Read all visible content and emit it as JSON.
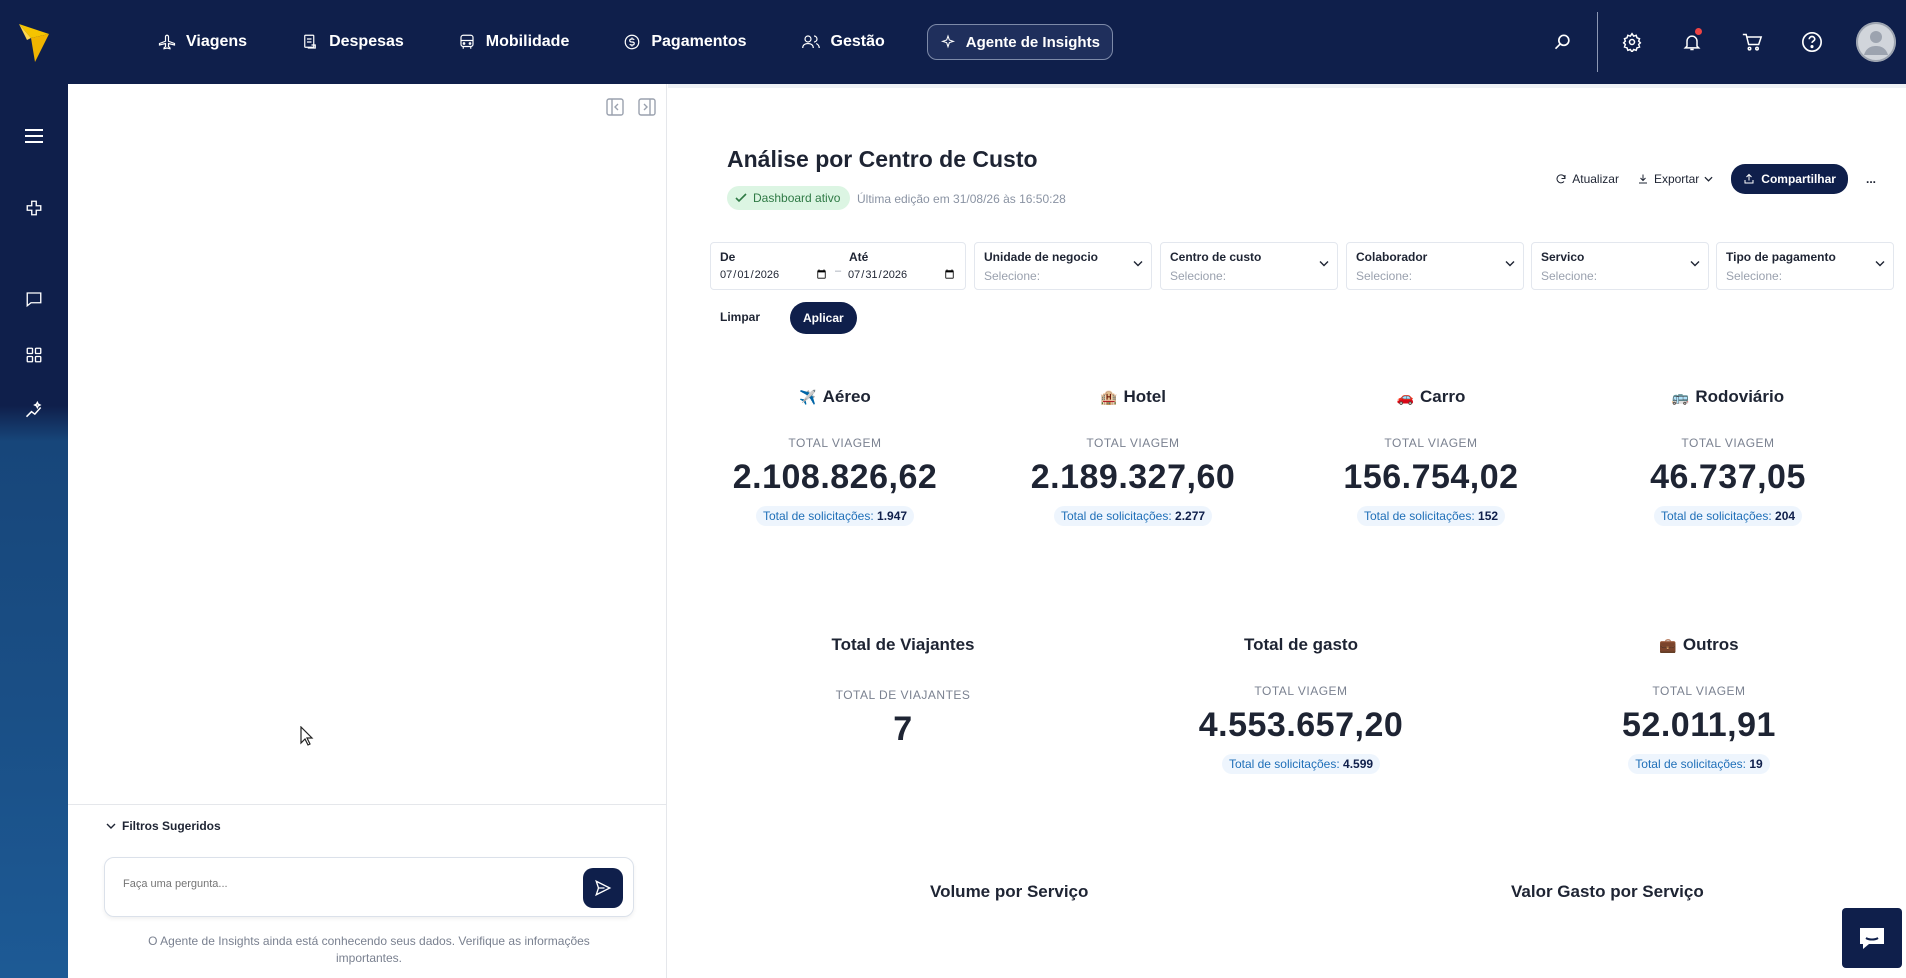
{
  "nav": {
    "items": [
      {
        "label": "Viagens",
        "icon": "plane-icon"
      },
      {
        "label": "Despesas",
        "icon": "receipt-icon"
      },
      {
        "label": "Mobilidade",
        "icon": "bus-icon"
      },
      {
        "label": "Pagamentos",
        "icon": "dollar-icon"
      },
      {
        "label": "Gestão",
        "icon": "users-icon"
      },
      {
        "label": "Agente de Insights",
        "icon": "sparkle-icon"
      }
    ]
  },
  "chat": {
    "suggested_filters": "Filtros Sugeridos",
    "input_placeholder": "Faça uma pergunta...",
    "disclaimer": "O Agente de Insights ainda está conhecendo seus dados. Verifique as informações importantes."
  },
  "dashboard": {
    "title": "Análise por Centro de Custo",
    "status_badge": "Dashboard ativo",
    "last_edit": "Última edição em 31/08/26 às 16:50:28",
    "actions": {
      "refresh": "Atualizar",
      "export": "Exportar",
      "share": "Compartilhar",
      "more": "..."
    }
  },
  "filters": {
    "from_label": "De",
    "from_value": "2026-07-01",
    "to_label": "Até",
    "to_value": "2026-07-31",
    "selects": [
      {
        "label": "Unidade de negocio",
        "placeholder": "Selecione:"
      },
      {
        "label": "Centro de custo",
        "placeholder": "Selecione:"
      },
      {
        "label": "Colaborador",
        "placeholder": "Selecione:"
      },
      {
        "label": "Servico",
        "placeholder": "Selecione:"
      },
      {
        "label": "Tipo de pagamento",
        "placeholder": "Selecione:"
      }
    ],
    "clear": "Limpar",
    "apply": "Aplicar"
  },
  "cards": [
    {
      "emoji": "✈️",
      "title": "Aéreo",
      "label": "TOTAL VIAGEM",
      "value": "2.108.826,62",
      "sub_label": "Total de solicitações:",
      "sub_value": "1.947"
    },
    {
      "emoji": "🏨",
      "title": "Hotel",
      "label": "TOTAL VIAGEM",
      "value": "2.189.327,60",
      "sub_label": "Total de solicitações:",
      "sub_value": "2.277"
    },
    {
      "emoji": "🚗",
      "title": "Carro",
      "label": "TOTAL VIAGEM",
      "value": "156.754,02",
      "sub_label": "Total de solicitações:",
      "sub_value": "152"
    },
    {
      "emoji": "🚌",
      "title": "Rodoviário",
      "label": "TOTAL VIAGEM",
      "value": "46.737,05",
      "sub_label": "Total de solicitações:",
      "sub_value": "204"
    },
    {
      "emoji": "",
      "title": "Total de Viajantes",
      "label": "TOTAL DE VIAJANTES",
      "value": "7",
      "sub_label": "",
      "sub_value": ""
    },
    {
      "emoji": "",
      "title": "Total de gasto",
      "label": "TOTAL VIAGEM",
      "value": "4.553.657,20",
      "sub_label": "Total de solicitações:",
      "sub_value": "4.599"
    },
    {
      "emoji": "💼",
      "title": "Outros",
      "label": "TOTAL VIAGEM",
      "value": "52.011,91",
      "sub_label": "Total de solicitações:",
      "sub_value": "19"
    }
  ],
  "sections": {
    "volume": "Volume por Serviço",
    "value": "Valor Gasto por Serviço"
  },
  "colors": {
    "navy": "#0f1f4b",
    "accent_yellow": "#f5c400",
    "badge_green": "#2f7a45",
    "link_blue": "#1f6fb8"
  }
}
